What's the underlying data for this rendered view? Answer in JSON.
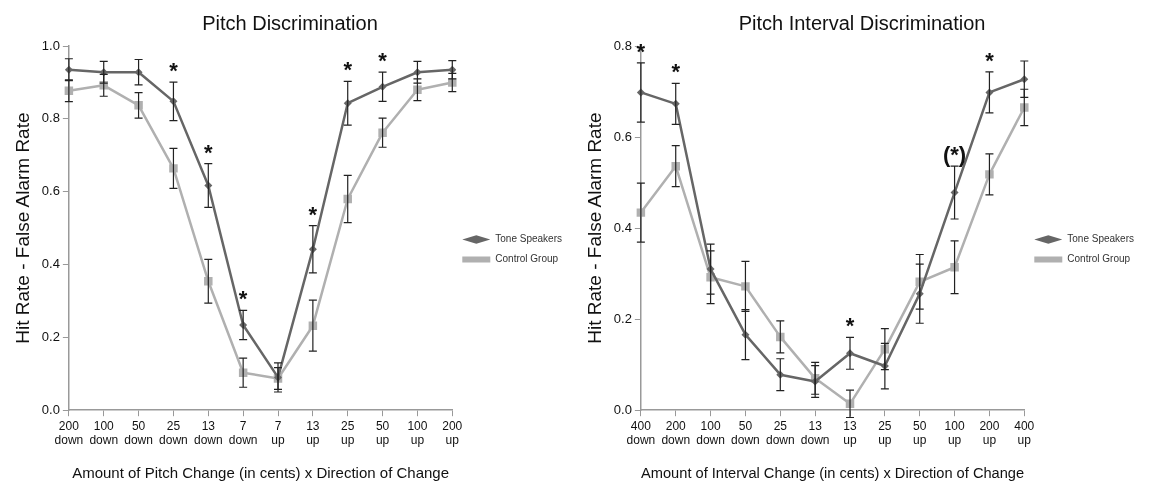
{
  "chart_data": [
    {
      "type": "line",
      "title": "Pitch Discrimination",
      "xlabel": "Amount of Pitch Change (in cents) x Direction of Change",
      "ylabel": "Hit Rate - False Alarm Rate",
      "categories": [
        "200\ndown",
        "100\ndown",
        "50\ndown",
        "25\ndown",
        "13\ndown",
        "7\ndown",
        "7\nup",
        "13\nup",
        "25\nup",
        "50\nup",
        "100\nup",
        "200\nup"
      ],
      "series": [
        {
          "name": "Tone Speakers",
          "color": "#666666",
          "marker": "diamond",
          "values": [
            0.935,
            0.928,
            0.928,
            0.848,
            0.617,
            0.234,
            0.09,
            0.442,
            0.843,
            0.888,
            0.928,
            0.935
          ],
          "errors": [
            0.03,
            0.03,
            0.035,
            0.053,
            0.06,
            0.04,
            0.04,
            0.065,
            0.06,
            0.04,
            0.03,
            0.025
          ]
        },
        {
          "name": "Control Group",
          "color": "#b0b0b0",
          "marker": "square",
          "values": [
            0.877,
            0.892,
            0.837,
            0.664,
            0.354,
            0.103,
            0.087,
            0.232,
            0.58,
            0.762,
            0.88,
            0.9
          ],
          "errors": [
            0.03,
            0.03,
            0.035,
            0.055,
            0.06,
            0.04,
            0.03,
            0.07,
            0.065,
            0.04,
            0.03,
            0.025
          ]
        }
      ],
      "ylim": [
        0,
        1
      ],
      "yticks": [
        {
          "value": 0,
          "label": "0.0"
        },
        {
          "value": 0.2,
          "label": "0.2"
        },
        {
          "value": 0.4,
          "label": "0.4"
        },
        {
          "value": 0.6,
          "label": "0.6"
        },
        {
          "value": 0.8,
          "label": "0.8"
        },
        {
          "value": 1,
          "label": "1.0"
        }
      ],
      "grid": false,
      "legend": "right",
      "annotations": [
        {
          "text": "*",
          "x": "25\ndown",
          "y": 0.848
        },
        {
          "text": "*",
          "x": "13\ndown",
          "y": 0.617
        },
        {
          "text": "*",
          "x": "7\ndown",
          "y": 0.234
        },
        {
          "text": "*",
          "x": "13\nup",
          "y": 0.442
        },
        {
          "text": "*",
          "x": "25\nup",
          "y": 0.843
        },
        {
          "text": "*",
          "x": "50\nup",
          "y": 0.888
        }
      ]
    },
    {
      "type": "line",
      "title": "Pitch Interval Discrimination",
      "xlabel": "Amount of Interval Change (in cents) x Direction of Change",
      "ylabel": "Hit Rate - False Alarm Rate",
      "categories": [
        "400\ndown",
        "200\ndown",
        "100\ndown",
        "50\ndown",
        "25\ndown",
        "13\ndown",
        "13\nup",
        "25\nup",
        "50\nup",
        "100\nup",
        "200\nup",
        "400\nup"
      ],
      "series": [
        {
          "name": "Tone Speakers",
          "color": "#666666",
          "marker": "diamond",
          "values": [
            0.698,
            0.673,
            0.31,
            0.166,
            0.078,
            0.063,
            0.125,
            0.097,
            0.256,
            0.478,
            0.698,
            0.727
          ],
          "errors": [
            0.065,
            0.045,
            0.055,
            0.055,
            0.035,
            0.035,
            0.035,
            0.05,
            0.065,
            0.058,
            0.045,
            0.04
          ]
        },
        {
          "name": "Control Group",
          "color": "#b0b0b0",
          "marker": "square",
          "values": [
            0.434,
            0.536,
            0.292,
            0.272,
            0.161,
            0.07,
            0.014,
            0.134,
            0.282,
            0.314,
            0.518,
            0.665
          ],
          "errors": [
            0.065,
            0.045,
            0.058,
            0.055,
            0.035,
            0.035,
            0.03,
            0.045,
            0.06,
            0.058,
            0.045,
            0.04
          ]
        }
      ],
      "ylim": [
        0,
        0.8
      ],
      "yticks": [
        {
          "value": 0,
          "label": "0.0"
        },
        {
          "value": 0.2,
          "label": "0.2"
        },
        {
          "value": 0.4,
          "label": "0.4"
        },
        {
          "value": 0.6,
          "label": "0.6"
        },
        {
          "value": 0.8,
          "label": "0.8"
        }
      ],
      "grid": false,
      "legend": "right",
      "annotations": [
        {
          "text": "*",
          "x": "400\ndown",
          "y": 0.698
        },
        {
          "text": "*",
          "x": "200\ndown",
          "y": 0.673
        },
        {
          "text": "*",
          "x": "13\nup",
          "y": 0.125
        },
        {
          "text": "(*)",
          "x": "100\nup",
          "y": 0.478
        },
        {
          "text": "*",
          "x": "200\nup",
          "y": 0.698
        }
      ]
    }
  ]
}
